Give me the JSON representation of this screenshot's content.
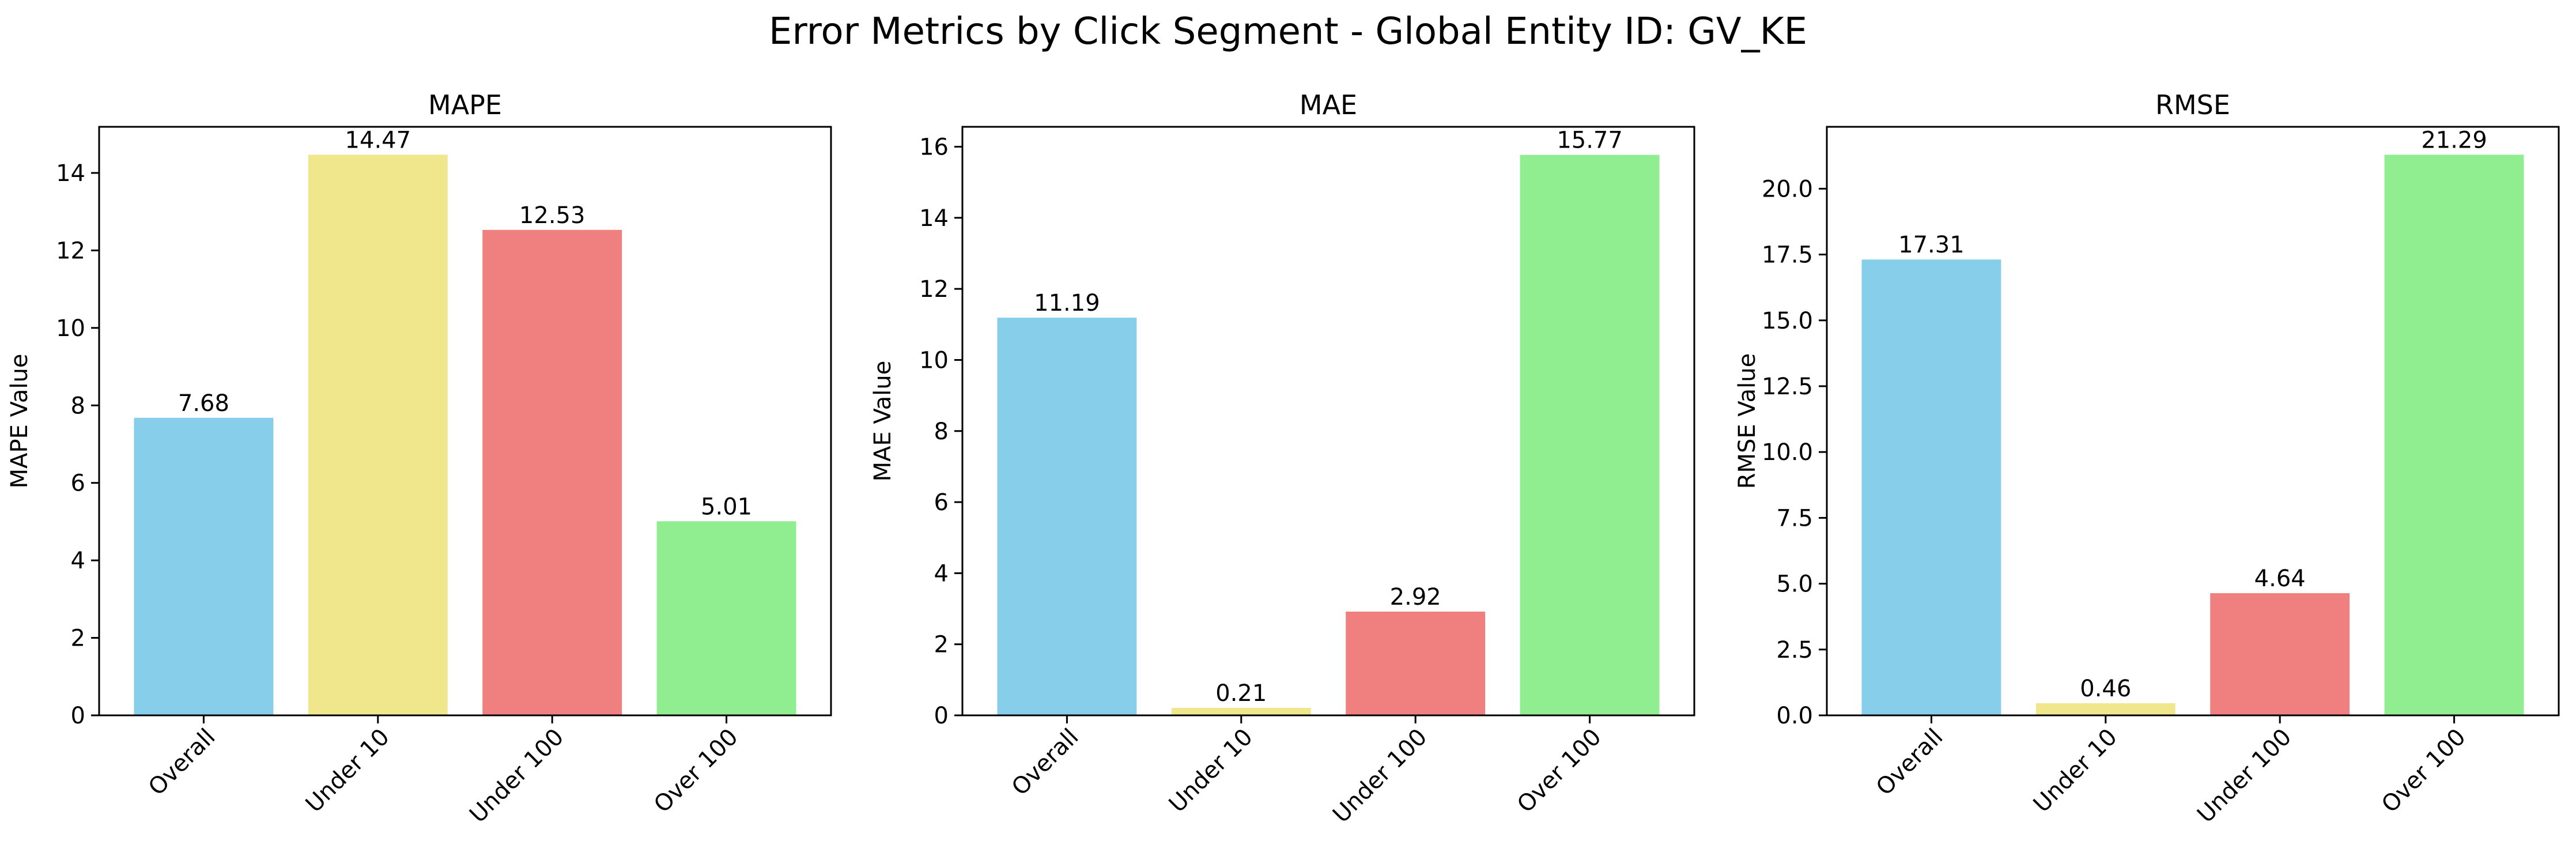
{
  "figure": {
    "suptitle": "Error Metrics by Click Segment - Global Entity ID: GV_KE"
  },
  "colors": {
    "bars": [
      "#87ceeb",
      "#f0e68c",
      "#f08080",
      "#90ee90"
    ],
    "axis": "#000000",
    "text": "#000000"
  },
  "chart_data": [
    {
      "type": "bar",
      "title": "MAPE",
      "xlabel": "",
      "ylabel": "MAPE Value",
      "categories": [
        "Overall",
        "Under 10",
        "Under 100",
        "Over 100"
      ],
      "values": [
        7.68,
        14.47,
        12.53,
        5.01
      ],
      "value_labels": [
        "7.68",
        "14.47",
        "12.53",
        "5.01"
      ],
      "ylim": [
        0,
        15.19
      ],
      "yticks": [
        0,
        2,
        4,
        6,
        8,
        10,
        12,
        14
      ],
      "ytick_labels": [
        "0",
        "2",
        "4",
        "6",
        "8",
        "10",
        "12",
        "14"
      ],
      "grid": false
    },
    {
      "type": "bar",
      "title": "MAE",
      "xlabel": "",
      "ylabel": "MAE Value",
      "categories": [
        "Overall",
        "Under 10",
        "Under 100",
        "Over 100"
      ],
      "values": [
        11.19,
        0.21,
        2.92,
        15.77
      ],
      "value_labels": [
        "11.19",
        "0.21",
        "2.92",
        "15.77"
      ],
      "ylim": [
        0,
        16.56
      ],
      "yticks": [
        0,
        2,
        4,
        6,
        8,
        10,
        12,
        14,
        16
      ],
      "ytick_labels": [
        "0",
        "2",
        "4",
        "6",
        "8",
        "10",
        "12",
        "14",
        "16"
      ],
      "grid": false
    },
    {
      "type": "bar",
      "title": "RMSE",
      "xlabel": "",
      "ylabel": "RMSE Value",
      "categories": [
        "Overall",
        "Under 10",
        "Under 100",
        "Over 100"
      ],
      "values": [
        17.31,
        0.46,
        4.64,
        21.29
      ],
      "value_labels": [
        "17.31",
        "0.46",
        "4.64",
        "21.29"
      ],
      "ylim": [
        0,
        22.35
      ],
      "yticks": [
        0,
        2.5,
        5,
        7.5,
        10,
        12.5,
        15,
        17.5,
        20
      ],
      "ytick_labels": [
        "0.0",
        "2.5",
        "5.0",
        "7.5",
        "10.0",
        "12.5",
        "15.0",
        "17.5",
        "20.0"
      ],
      "grid": false
    }
  ]
}
